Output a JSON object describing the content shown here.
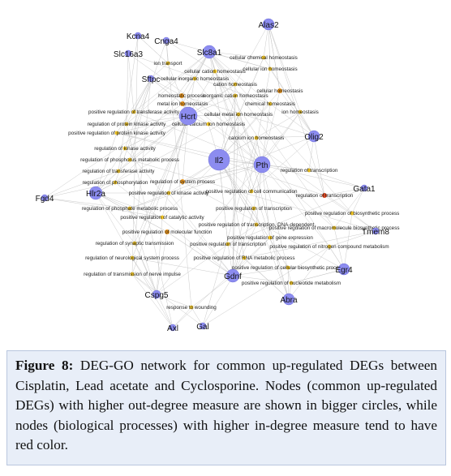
{
  "genes": [
    "Kcna4",
    "Cnga4",
    "Alas2",
    "Slc16a3",
    "Slc8a1",
    "Sftpc",
    "Hcrt",
    "Il2",
    "Pth",
    "Olig2",
    "Fgd4",
    "Hlr2a",
    "Gata1",
    "Tmem8",
    "Egr4",
    "Gdnf",
    "Abra",
    "Cspg5",
    "Axl",
    "Gal"
  ],
  "go_terms": [
    "ion transport",
    "cellular chemical homeostasis",
    "cellular cation homeostasis",
    "cellular ion homeostasis",
    "cellular inorganic homeostasis",
    "cation homeostasis",
    "cellular homeostasis",
    "homeostatic process",
    "inorganic cation homeostasis",
    "chemical homeostasis",
    "metal ion homeostasis",
    "ion homeostasis",
    "positive regulation of transferase activity",
    "cellular metal ion homeostasis",
    "regulation of protein kinase activity",
    "cellular calcium ion homeostasis",
    "positive regulation of protein kinase activity",
    "calcium ion homeostasis",
    "regulation of kinase activity",
    "regulation of phosphorus metabolic process",
    "regulation of transferase activity",
    "regulation of transcription",
    "regulation of system process",
    "regulation of phosphorylation",
    "positive regulation of cell communication",
    "positive regulation of kinase activity",
    "regulation of transcription",
    "regulation of phosphate metabolic process",
    "positive regulation of transcription",
    "positive regulation of biosynthetic process",
    "positive regulation of catalytic activity",
    "positive regulation of transcription, DNA-dependent",
    "positive regulation of macromolecule biosynthetic process",
    "positive regulation of molecular function",
    "positive regulation of gene expression",
    "regulation of synaptic transmission",
    "positive regulation of transcription",
    "positive regulation of nitrogen compound metabolism",
    "regulation of neurological system process",
    "positive regulation of RNA metabolic process",
    "regulation of transmission of nerve impulse",
    "positive regulation of cellular biosynthetic process",
    "positive regulation of nucleotide metabolism",
    "response to wounding"
  ],
  "caption": {
    "label": "Figure 8:",
    "text": "DEG-GO network for common up-regulated DEGs between Cisplatin, Lead acetate and Cyclosporine. Nodes (common up-regulated DEGs) with higher out-degree measure are shown in bigger circles, while nodes (biological processes) with higher in-degree measure tend to have red color."
  }
}
